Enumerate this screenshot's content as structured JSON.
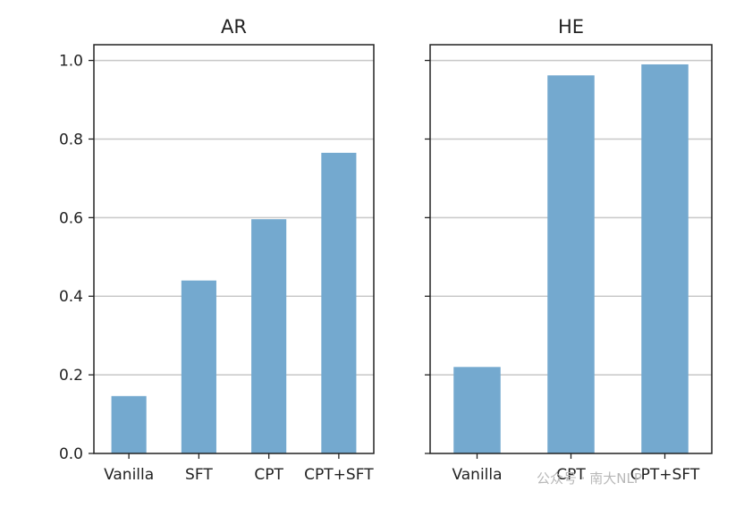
{
  "chart_data": [
    {
      "type": "bar",
      "title": "AR",
      "categories": [
        "Vanilla",
        "SFT",
        "CPT",
        "CPT+SFT"
      ],
      "values": [
        0.146,
        0.44,
        0.596,
        0.765
      ],
      "ylim": [
        0,
        1.04
      ],
      "yticks": [
        "0.0",
        "0.2",
        "0.4",
        "0.6",
        "0.8",
        "1.0"
      ],
      "grid": "horizontal",
      "bar_color": "#74a9cf"
    },
    {
      "type": "bar",
      "title": "HE",
      "categories": [
        "Vanilla",
        "CPT",
        "CPT+SFT"
      ],
      "values": [
        0.22,
        0.962,
        0.99
      ],
      "ylim": [
        0,
        1.04
      ],
      "grid": "horizontal",
      "bar_color": "#74a9cf"
    }
  ],
  "watermark": "公众号 · 南大NLP"
}
